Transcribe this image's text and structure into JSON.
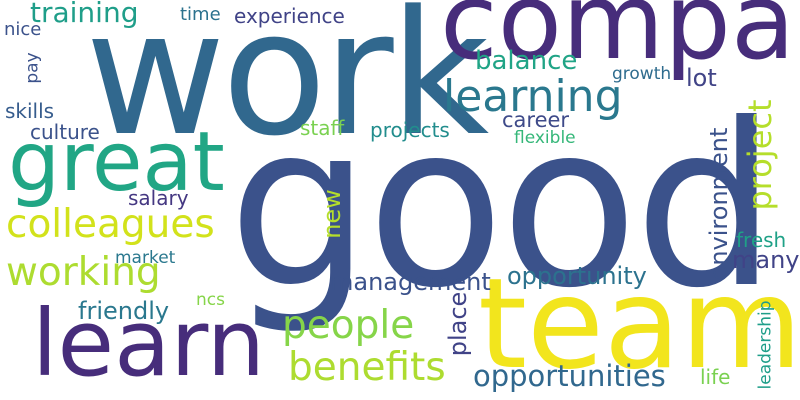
{
  "words": {
    "good": {
      "text": "good",
      "color": "#3b528b"
    },
    "work": {
      "text": "work",
      "color": "#31688e"
    },
    "team": {
      "text": "team",
      "color": "#f2e51d"
    },
    "company": {
      "text": "company",
      "color": "#472d7b"
    },
    "learn": {
      "text": "learn",
      "color": "#472d7b"
    },
    "great": {
      "text": "great",
      "color": "#21a685"
    },
    "learning": {
      "text": "learning",
      "color": "#2a788e"
    },
    "colleagues": {
      "text": "colleagues",
      "color": "#d2e21b"
    },
    "working": {
      "text": "working",
      "color": "#addc30"
    },
    "people": {
      "text": "people",
      "color": "#86d549"
    },
    "benefits": {
      "text": "benefits",
      "color": "#addc30"
    },
    "opportunities": {
      "text": "opportunities",
      "color": "#31688e"
    },
    "project": {
      "text": "project",
      "color": "#b5de2b"
    },
    "training": {
      "text": "training",
      "color": "#1f9e89"
    },
    "balance": {
      "text": "balance",
      "color": "#20a486"
    },
    "environment": {
      "text": "environment",
      "color": "#3b528b"
    },
    "management": {
      "text": "management",
      "color": "#3b528b"
    },
    "opportunity": {
      "text": "opportunity",
      "color": "#2c728e"
    },
    "friendly": {
      "text": "friendly",
      "color": "#2a788e"
    },
    "place": {
      "text": "place",
      "color": "#404387"
    },
    "many": {
      "text": "many",
      "color": "#404387"
    },
    "lot": {
      "text": "lot",
      "color": "#414487"
    },
    "new": {
      "text": "new",
      "color": "#b5de2b"
    },
    "career": {
      "text": "career",
      "color": "#3e4a89"
    },
    "experience": {
      "text": "experience",
      "color": "#404387"
    },
    "skills": {
      "text": "skills",
      "color": "#365c8d"
    },
    "culture": {
      "text": "culture",
      "color": "#3b528b"
    },
    "staff": {
      "text": "staff",
      "color": "#7ad151"
    },
    "projects": {
      "text": "projects",
      "color": "#228d8d"
    },
    "salary": {
      "text": "salary",
      "color": "#453882"
    },
    "fresh": {
      "text": "fresh",
      "color": "#1fa187"
    },
    "life": {
      "text": "life",
      "color": "#7ad151"
    },
    "nice": {
      "text": "nice",
      "color": "#3b528b"
    },
    "time": {
      "text": "time",
      "color": "#2c728e"
    },
    "pay": {
      "text": "pay",
      "color": "#3b528b"
    },
    "growth": {
      "text": "growth",
      "color": "#2f6c8e"
    },
    "flexible": {
      "text": "flexible",
      "color": "#35b779"
    },
    "market": {
      "text": "market",
      "color": "#2a788e"
    },
    "ncs": {
      "text": "ncs",
      "color": "#86d549"
    },
    "leadership": {
      "text": "leadership",
      "color": "#1f9e89"
    }
  }
}
